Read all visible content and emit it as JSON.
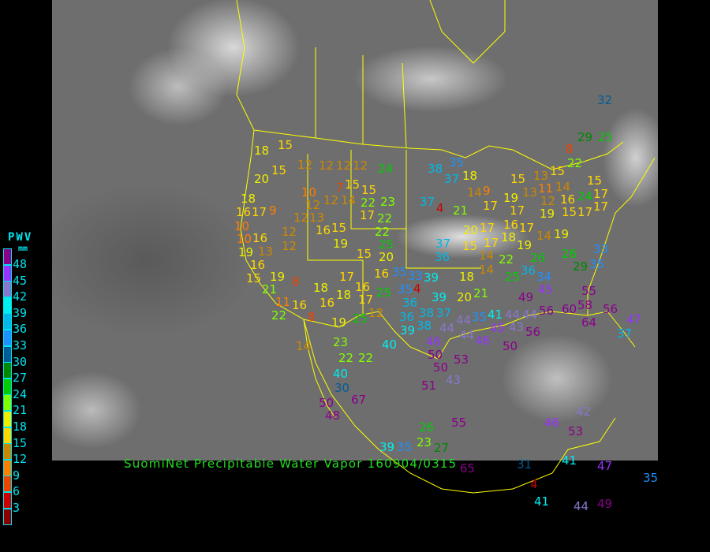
{
  "title": "SuomiNet Precipitable Water Vapor 160904/0315",
  "legend": {
    "title": "PWV",
    "unit": "mm",
    "bins": [
      {
        "label": "48",
        "color": "#8b008b"
      },
      {
        "label": "45",
        "color": "#9933ff"
      },
      {
        "label": "42",
        "color": "#8877cc"
      },
      {
        "label": "39",
        "color": "#00eeee"
      },
      {
        "label": "36",
        "color": "#00b8e8"
      },
      {
        "label": "33",
        "color": "#1e90ff"
      },
      {
        "label": "30",
        "color": "#005c99"
      },
      {
        "label": "27",
        "color": "#008800"
      },
      {
        "label": "24",
        "color": "#00cc00"
      },
      {
        "label": "21",
        "color": "#80ff00"
      },
      {
        "label": "18",
        "color": "#eeee00"
      },
      {
        "label": "15",
        "color": "#ffd700"
      },
      {
        "label": "12",
        "color": "#cc8800"
      },
      {
        "label": "9",
        "color": "#ff7f00"
      },
      {
        "label": "6",
        "color": "#ee4400"
      },
      {
        "label": "3",
        "color": "#cc0000"
      },
      {
        "label": "",
        "color": "#8b0000"
      }
    ]
  },
  "colors": {
    "boundaries": "#ffff00",
    "title": "#22dd22",
    "legend_text": "#00e5ee"
  },
  "stations": [
    15,
    18,
    15,
    20,
    12,
    12,
    12,
    12,
    24,
    10,
    12,
    12,
    14,
    7,
    15,
    15,
    22,
    23,
    17,
    22,
    22,
    25,
    18,
    16,
    17,
    9,
    10,
    10,
    16,
    19,
    13,
    12,
    12,
    13,
    16,
    15,
    12,
    19,
    16,
    15,
    19,
    21,
    8,
    11,
    16,
    22,
    8,
    18,
    16,
    18,
    17,
    16,
    17,
    16,
    25,
    12,
    25,
    19,
    14,
    23,
    22,
    22,
    40,
    40,
    30,
    67,
    50,
    48,
    15,
    20,
    39,
    35,
    26,
    23,
    27,
    55,
    51,
    43,
    50,
    50,
    53,
    46,
    39,
    38,
    36,
    38,
    37,
    36,
    35,
    33,
    35,
    39,
    4,
    39,
    20,
    21,
    44,
    44,
    35,
    41,
    46,
    44,
    44,
    45,
    43,
    44,
    56,
    50,
    56,
    60,
    58,
    64,
    56,
    47,
    37,
    49,
    45,
    34,
    36,
    25,
    14,
    18,
    14,
    15,
    17,
    22,
    26,
    26,
    29,
    33,
    35,
    55,
    20,
    17,
    18,
    37,
    36,
    37,
    38,
    35,
    37,
    18,
    14,
    9,
    17,
    4,
    21,
    17,
    16,
    19,
    17,
    14,
    19,
    13,
    11,
    14,
    16,
    15,
    13,
    15,
    12,
    19,
    19,
    15,
    24,
    17,
    17,
    15,
    17,
    8,
    22,
    29,
    25,
    32,
    65,
    31,
    4,
    41,
    47,
    35,
    41,
    44,
    49,
    42,
    53,
    46
  ]
}
